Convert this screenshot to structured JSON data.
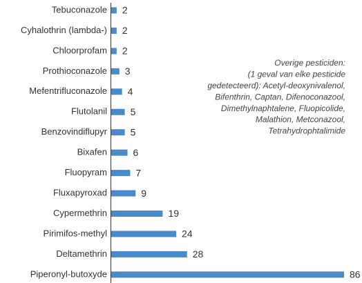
{
  "chart_data": {
    "type": "bar",
    "orientation": "horizontal",
    "color": "#4a8acb",
    "categories": [
      "Tebuconazole",
      "Cyhalothrin (lambda-)",
      "Chloorprofam",
      "Prothioconazole",
      "Mefentrifluconazole",
      "Flutolanil",
      "Benzovindiflupyr",
      "Bixafen",
      "Fluopyram",
      "Fluxapyroxad",
      "Cypermethrin",
      "Pirimifos-methyl",
      "Deltamethrin",
      "Piperonyl-butoxyde"
    ],
    "values": [
      2,
      2,
      2,
      3,
      4,
      5,
      5,
      6,
      7,
      9,
      19,
      24,
      28,
      86
    ],
    "annotation": [
      "Overige pesticiden:",
      "(1 geval van elke pesticide",
      "gedetecteerd): Acetyl-deoxynivalenol,",
      "Bifenthrin, Captan, Difenoconazool,",
      "Dimethylnaphtalene, Fluopicolide,",
      "Malathion, Metconazool,",
      "Tetrahydrophtalimide"
    ]
  }
}
